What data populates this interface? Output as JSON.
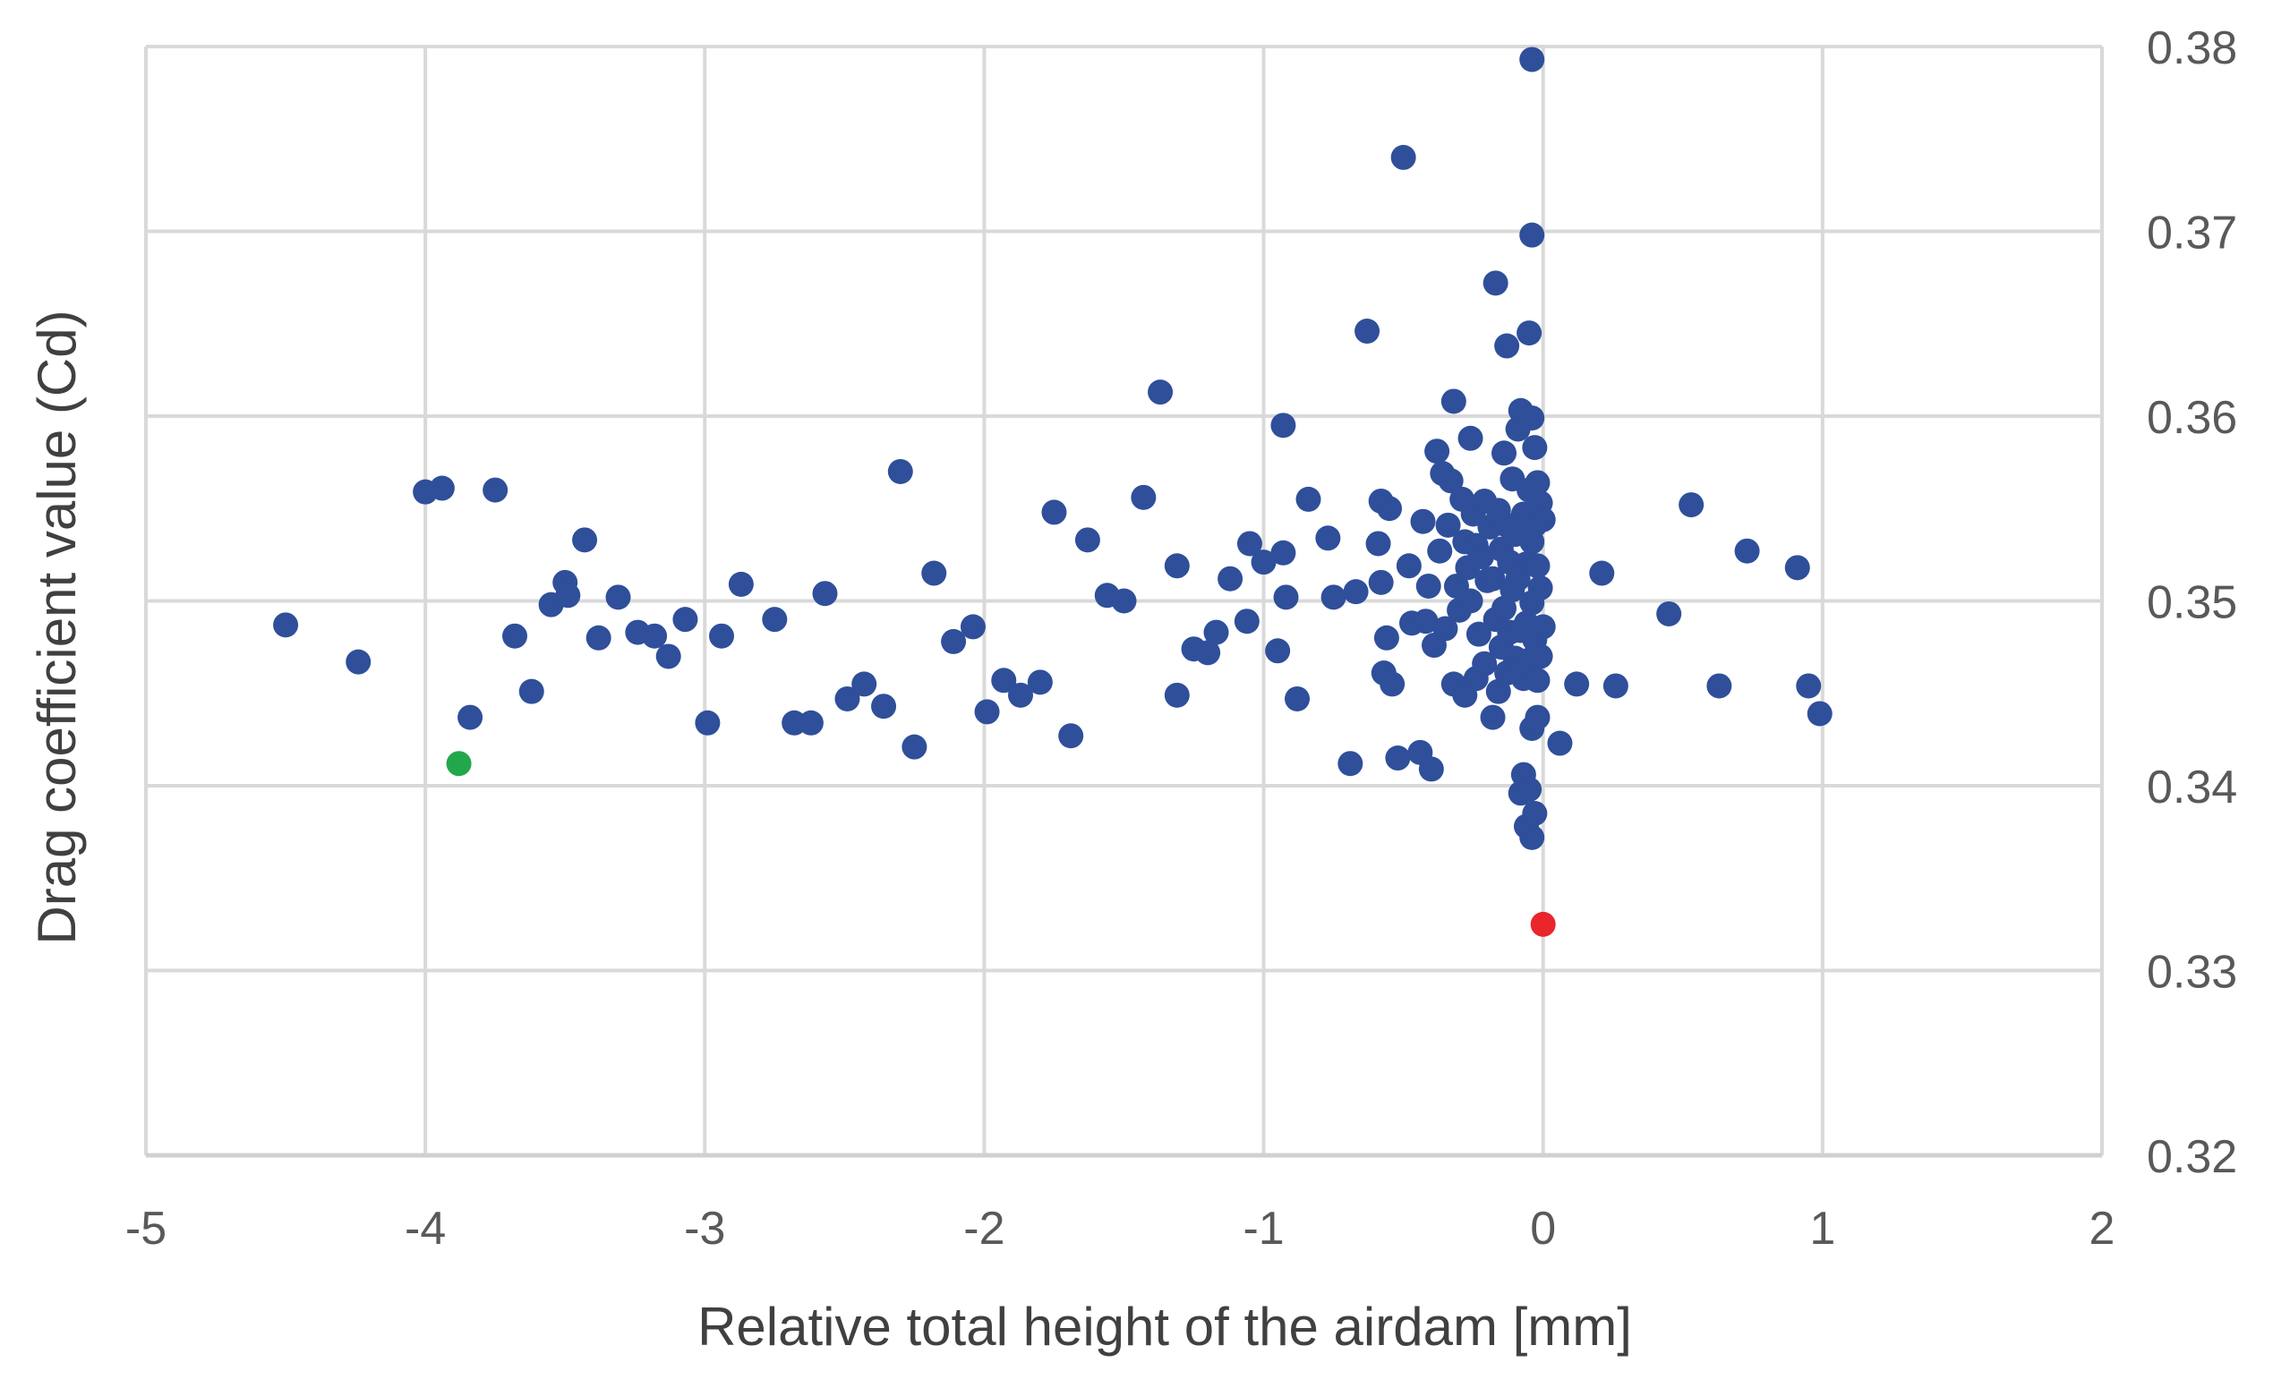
{
  "chart_data": {
    "type": "scatter",
    "xlabel": "Relative total height of the airdam [mm]",
    "ylabel": "Drag coefficient value (Cd)",
    "xlim": [
      -5,
      2
    ],
    "ylim": [
      0.32,
      0.38
    ],
    "x_ticks": [
      "-5",
      "-4",
      "-3",
      "-2",
      "-1",
      "0",
      "1",
      "2"
    ],
    "y_ticks": [
      "0.32",
      "0.33",
      "0.34",
      "0.35",
      "0.36",
      "0.37",
      "0.38"
    ],
    "y_axis_side": "right",
    "grid": true,
    "legend": "none",
    "colors": {
      "default": "#2f4f9a",
      "baseline": "#e8262c",
      "optimum": "#22a84a",
      "grid": "#d9d9d9"
    },
    "series": [
      {
        "color": "#2f4f9a",
        "points": [
          [
            -4.5,
            0.3487
          ],
          [
            -4.24,
            0.3467
          ],
          [
            -4.0,
            0.3559
          ],
          [
            -3.94,
            0.3561
          ],
          [
            -3.75,
            0.356
          ],
          [
            -3.84,
            0.3437
          ],
          [
            -3.68,
            0.3481
          ],
          [
            -3.62,
            0.3451
          ],
          [
            -3.55,
            0.3498
          ],
          [
            -3.5,
            0.351
          ],
          [
            -3.49,
            0.3503
          ],
          [
            -3.43,
            0.3533
          ],
          [
            -3.38,
            0.348
          ],
          [
            -3.31,
            0.3502
          ],
          [
            -3.24,
            0.3483
          ],
          [
            -3.18,
            0.3481
          ],
          [
            -3.13,
            0.347
          ],
          [
            -3.07,
            0.349
          ],
          [
            -2.99,
            0.3434
          ],
          [
            -2.94,
            0.3481
          ],
          [
            -2.87,
            0.3509
          ],
          [
            -2.75,
            0.349
          ],
          [
            -2.68,
            0.3434
          ],
          [
            -2.62,
            0.3434
          ],
          [
            -2.57,
            0.3504
          ],
          [
            -2.49,
            0.3447
          ],
          [
            -2.43,
            0.3455
          ],
          [
            -2.36,
            0.3443
          ],
          [
            -2.3,
            0.357
          ],
          [
            -2.25,
            0.3421
          ],
          [
            -2.18,
            0.3515
          ],
          [
            -2.11,
            0.3478
          ],
          [
            -2.04,
            0.3486
          ],
          [
            -1.99,
            0.344
          ],
          [
            -1.93,
            0.3457
          ],
          [
            -1.87,
            0.3449
          ],
          [
            -1.8,
            0.3456
          ],
          [
            -1.75,
            0.3548
          ],
          [
            -1.69,
            0.3427
          ],
          [
            -1.63,
            0.3533
          ],
          [
            -1.56,
            0.3503
          ],
          [
            -1.5,
            0.35
          ],
          [
            -1.43,
            0.3556
          ],
          [
            -1.37,
            0.3613
          ],
          [
            -1.31,
            0.3519
          ],
          [
            -1.31,
            0.3449
          ],
          [
            -1.25,
            0.3474
          ],
          [
            -1.2,
            0.3472
          ],
          [
            -1.17,
            0.3483
          ],
          [
            -1.12,
            0.3512
          ],
          [
            -1.06,
            0.3489
          ],
          [
            -1.05,
            0.3531
          ],
          [
            -1.0,
            0.3521
          ],
          [
            -0.95,
            0.3473
          ],
          [
            -0.93,
            0.3526
          ],
          [
            -0.93,
            0.3595
          ],
          [
            -0.92,
            0.3502
          ],
          [
            -0.88,
            0.3447
          ],
          [
            -0.84,
            0.3555
          ],
          [
            -0.77,
            0.3534
          ],
          [
            -0.75,
            0.3502
          ],
          [
            -0.69,
            0.3412
          ],
          [
            -0.67,
            0.3505
          ],
          [
            -0.63,
            0.3646
          ],
          [
            -0.59,
            0.3531
          ],
          [
            -0.58,
            0.351
          ],
          [
            -0.58,
            0.3554
          ],
          [
            -0.57,
            0.3461
          ],
          [
            -0.56,
            0.348
          ],
          [
            -0.55,
            0.355
          ],
          [
            -0.54,
            0.3455
          ],
          [
            -0.52,
            0.3415
          ],
          [
            -0.5,
            0.374
          ],
          [
            -0.48,
            0.3519
          ],
          [
            -0.47,
            0.3488
          ],
          [
            -0.44,
            0.3418
          ],
          [
            -0.43,
            0.3543
          ],
          [
            -0.42,
            0.3489
          ],
          [
            -0.41,
            0.3508
          ],
          [
            -0.4,
            0.3409
          ],
          [
            -0.39,
            0.3476
          ],
          [
            -0.38,
            0.3581
          ],
          [
            -0.37,
            0.3527
          ],
          [
            -0.36,
            0.3569
          ],
          [
            -0.35,
            0.3485
          ],
          [
            -0.34,
            0.3541
          ],
          [
            -0.33,
            0.3565
          ],
          [
            -0.32,
            0.3608
          ],
          [
            -0.32,
            0.3455
          ],
          [
            -0.31,
            0.3508
          ],
          [
            -0.3,
            0.3495
          ],
          [
            -0.29,
            0.3555
          ],
          [
            -0.28,
            0.3449
          ],
          [
            -0.28,
            0.3532
          ],
          [
            -0.27,
            0.3518
          ],
          [
            -0.26,
            0.35
          ],
          [
            -0.26,
            0.3588
          ],
          [
            -0.25,
            0.3547
          ],
          [
            -0.24,
            0.3458
          ],
          [
            -0.24,
            0.353
          ],
          [
            -0.23,
            0.3482
          ],
          [
            -0.22,
            0.3524
          ],
          [
            -0.21,
            0.3554
          ],
          [
            -0.21,
            0.3466
          ],
          [
            -0.2,
            0.3511
          ],
          [
            -0.19,
            0.354
          ],
          [
            -0.18,
            0.3437
          ],
          [
            -0.18,
            0.3512
          ],
          [
            -0.17,
            0.3672
          ],
          [
            -0.17,
            0.349
          ],
          [
            -0.16,
            0.3549
          ],
          [
            -0.16,
            0.3451
          ],
          [
            -0.15,
            0.3528
          ],
          [
            -0.15,
            0.3475
          ],
          [
            -0.14,
            0.358
          ],
          [
            -0.14,
            0.3496
          ],
          [
            -0.13,
            0.3638
          ],
          [
            -0.13,
            0.3541
          ],
          [
            -0.13,
            0.3461
          ],
          [
            -0.12,
            0.3521
          ],
          [
            -0.12,
            0.3483
          ],
          [
            -0.11,
            0.3566
          ],
          [
            -0.11,
            0.3506
          ],
          [
            -0.1,
            0.3536
          ],
          [
            -0.1,
            0.3469
          ],
          [
            -0.09,
            0.3593
          ],
          [
            -0.09,
            0.3512
          ],
          [
            -0.08,
            0.3603
          ],
          [
            -0.08,
            0.3484
          ],
          [
            -0.08,
            0.3396
          ],
          [
            -0.07,
            0.3547
          ],
          [
            -0.07,
            0.3458
          ],
          [
            -0.07,
            0.3406
          ],
          [
            -0.06,
            0.352
          ],
          [
            -0.06,
            0.3488
          ],
          [
            -0.06,
            0.3378
          ],
          [
            -0.05,
            0.3645
          ],
          [
            -0.05,
            0.356
          ],
          [
            -0.05,
            0.3468
          ],
          [
            -0.05,
            0.3398
          ],
          [
            -0.04,
            0.3793
          ],
          [
            -0.04,
            0.3698
          ],
          [
            -0.04,
            0.3599
          ],
          [
            -0.04,
            0.3532
          ],
          [
            -0.04,
            0.3499
          ],
          [
            -0.04,
            0.3431
          ],
          [
            -0.04,
            0.3372
          ],
          [
            -0.03,
            0.3583
          ],
          [
            -0.03,
            0.3541
          ],
          [
            -0.03,
            0.3479
          ],
          [
            -0.03,
            0.3385
          ],
          [
            -0.02,
            0.3564
          ],
          [
            -0.02,
            0.3519
          ],
          [
            -0.02,
            0.3457
          ],
          [
            -0.02,
            0.3437
          ],
          [
            -0.01,
            0.3553
          ],
          [
            -0.01,
            0.3507
          ],
          [
            -0.01,
            0.347
          ],
          [
            0.0,
            0.3544
          ],
          [
            0.0,
            0.3486
          ],
          [
            0.06,
            0.3423
          ],
          [
            0.12,
            0.3455
          ],
          [
            0.21,
            0.3515
          ],
          [
            0.26,
            0.3454
          ],
          [
            0.45,
            0.3493
          ],
          [
            0.53,
            0.3552
          ],
          [
            0.63,
            0.3454
          ],
          [
            0.73,
            0.3527
          ],
          [
            0.91,
            0.3518
          ],
          [
            0.95,
            0.3454
          ],
          [
            0.99,
            0.3439
          ]
        ]
      },
      {
        "color": "#e8262c",
        "points": [
          [
            0.0,
            0.3325
          ]
        ]
      },
      {
        "color": "#22a84a",
        "points": [
          [
            -3.88,
            0.3412
          ]
        ]
      }
    ]
  }
}
